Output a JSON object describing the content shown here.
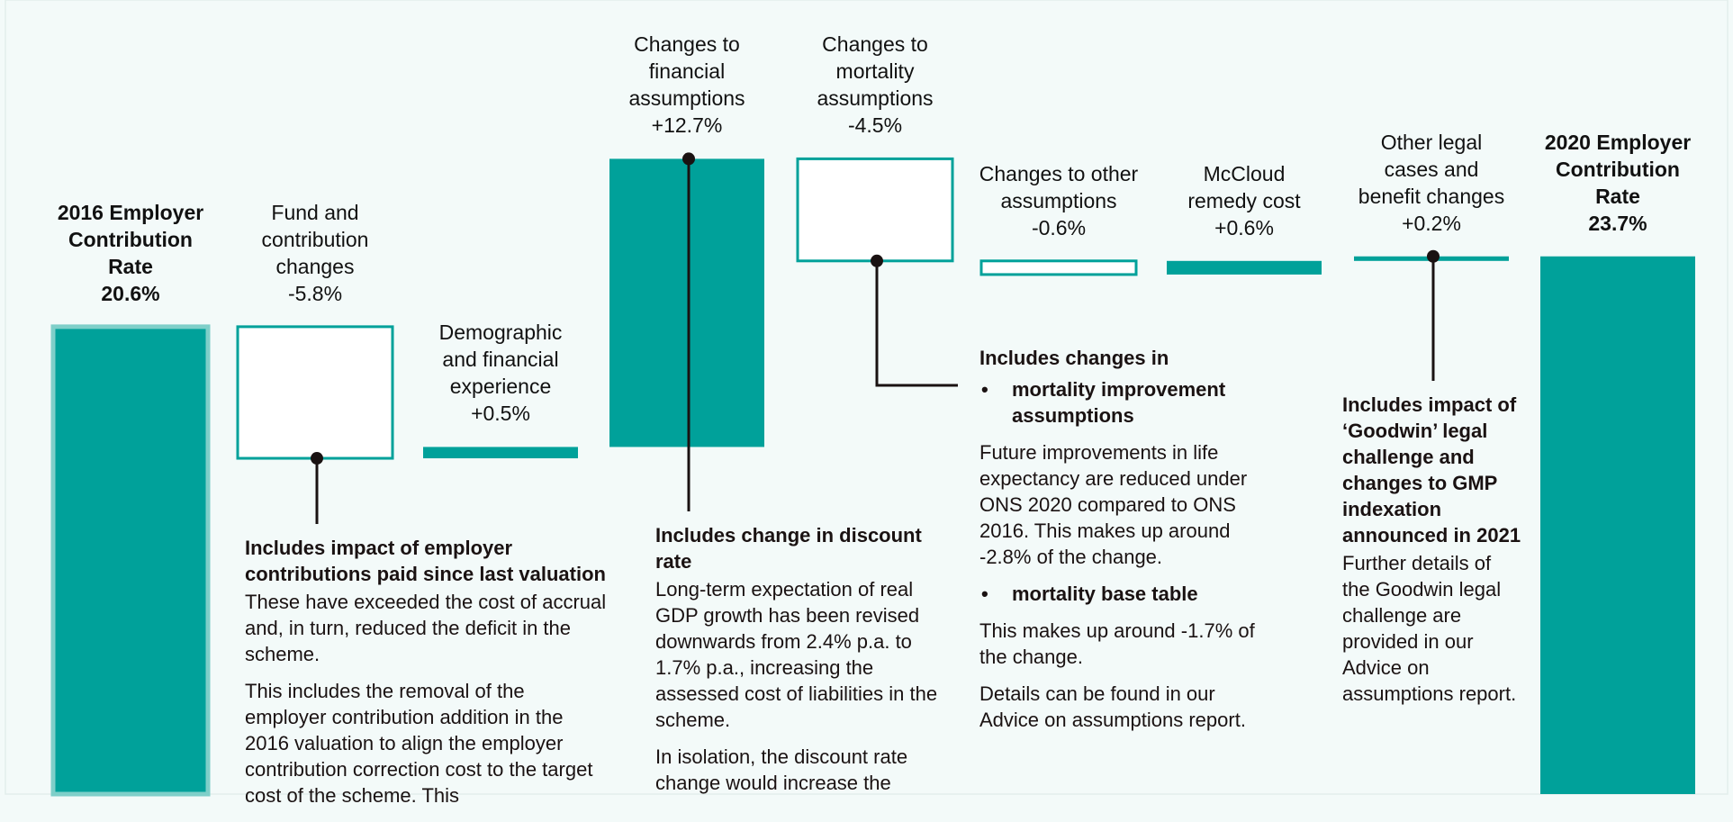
{
  "chart_data": {
    "type": "waterfall",
    "categories": [
      "2016 Employer\nContribution\nRate",
      "Fund and\ncontribution\nchanges",
      "Demographic\nand financial\nexperience",
      "Changes to\nfinancial\nassumptions",
      "Changes to\nmortality\nassumptions",
      "Changes to other\nassumptions",
      "McCloud\nremedy cost",
      "Other legal\ncases and\nbenefit changes",
      "2020 Employer\nContribution\nRate"
    ],
    "values": [
      20.6,
      -5.8,
      0.5,
      12.7,
      -4.5,
      -0.6,
      0.6,
      0.2,
      23.7
    ],
    "value_labels": [
      "20.6%",
      "-5.8%",
      "+0.5%",
      "+12.7%",
      "-4.5%",
      "-0.6%",
      "+0.6%",
      "+0.2%",
      "23.7%"
    ],
    "totals": [
      0,
      8
    ],
    "colors": {
      "increase": "#00a19a",
      "decrease": "#ffffff",
      "outline": "#00a19a",
      "total": "#00a19a"
    },
    "annotations": [
      {
        "category": 1,
        "heading": "Includes impact of employer contributions paid since last valuation",
        "sections": [
          {
            "paragraphs": [
              "These have exceeded the cost of accrual and, in turn, reduced the deficit in the scheme.",
              "This includes the removal of the employer contribution addition in the 2016 valuation to align the employer contribution correction cost to the target cost of the scheme. This"
            ]
          }
        ]
      },
      {
        "category": 3,
        "heading": "Includes change in discount rate",
        "sections": [
          {
            "paragraphs": [
              "Long-term expectation of real GDP growth has been revised downwards from 2.4% p.a. to 1.7% p.a., increasing the assessed cost of liabilities in the scheme.",
              "In isolation, the discount rate change would increase the"
            ]
          }
        ]
      },
      {
        "category": 4,
        "heading": "Includes changes in",
        "sections": [
          {
            "bullet": "mortality improvement assumptions",
            "paragraphs": [
              "Future improvements in life expectancy are reduced under ONS 2020 compared to ONS 2016. This makes up around -2.8% of the change."
            ]
          },
          {
            "bullet": "mortality base table",
            "paragraphs": [
              "This makes up around -1.7% of the change.",
              "Details can be found in our Advice on assumptions report."
            ]
          }
        ]
      },
      {
        "category": 7,
        "heading": "Includes impact of ‘Goodwin’ legal challenge and changes to GMP indexation announced in 2021",
        "sections": [
          {
            "paragraphs": [
              "Further details of the Goodwin legal challenge are provided in our Advice on assumptions report."
            ]
          }
        ]
      }
    ]
  }
}
